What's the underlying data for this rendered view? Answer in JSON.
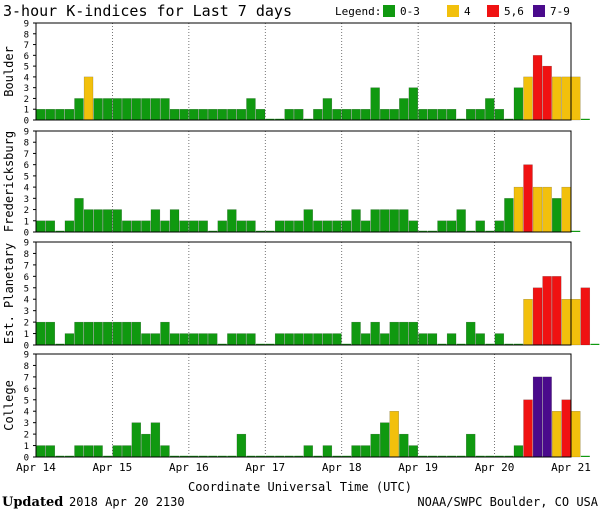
{
  "chart_data": {
    "type": "bar",
    "title": "3-hour K-indices for Last 7 days",
    "legend": {
      "label": "Legend:",
      "placement": "top-right",
      "entries": [
        {
          "label": "0-3",
          "color": "#109910"
        },
        {
          "label": "4",
          "color": "#f2c00c"
        },
        {
          "label": "5,6",
          "color": "#f01212"
        },
        {
          "label": "7-9",
          "color": "#4a0a8c"
        }
      ]
    },
    "xlabel": "Coordinate Universal Time (UTC)",
    "x_tick_labels": [
      "Apr 14",
      "Apr 15",
      "Apr 16",
      "Apr 17",
      "Apr 18",
      "Apr 19",
      "Apr 20",
      "Apr 21"
    ],
    "ylim": [
      0,
      9
    ],
    "y_ticks": [
      0,
      1,
      2,
      3,
      4,
      5,
      6,
      7,
      8,
      9
    ],
    "bar_interval_hours": 3,
    "panels": [
      {
        "name": "Boulder",
        "values": [
          1,
          1,
          1,
          1,
          2,
          4,
          2,
          2,
          2,
          2,
          2,
          2,
          2,
          2,
          1,
          1,
          1,
          1,
          1,
          1,
          1,
          1,
          2,
          1,
          0,
          0,
          1,
          1,
          0,
          1,
          2,
          1,
          1,
          1,
          1,
          3,
          1,
          1,
          2,
          3,
          1,
          1,
          1,
          1,
          0,
          1,
          1,
          2,
          1,
          0,
          3,
          4,
          6,
          5,
          4,
          4,
          4,
          0
        ]
      },
      {
        "name": "Fredericksburg",
        "values": [
          1,
          1,
          0,
          1,
          3,
          2,
          2,
          2,
          2,
          1,
          1,
          1,
          2,
          1,
          2,
          1,
          1,
          1,
          0,
          1,
          2,
          1,
          1,
          0,
          0,
          1,
          1,
          1,
          2,
          1,
          1,
          1,
          1,
          2,
          1,
          2,
          2,
          2,
          2,
          1,
          0,
          0,
          1,
          1,
          2,
          0,
          1,
          0,
          1,
          3,
          4,
          6,
          4,
          4,
          3,
          4,
          0
        ]
      },
      {
        "name": "Est. Planetary",
        "values": [
          2,
          2,
          0,
          1,
          2,
          2,
          2,
          2,
          2,
          2,
          2,
          1,
          1,
          2,
          1,
          1,
          1,
          1,
          1,
          0,
          1,
          1,
          1,
          0,
          0,
          1,
          1,
          1,
          1,
          1,
          1,
          1,
          0,
          2,
          1,
          2,
          1,
          2,
          2,
          2,
          1,
          1,
          0,
          1,
          0,
          2,
          1,
          0,
          1,
          0,
          0,
          4,
          5,
          6,
          6,
          4,
          4,
          5,
          0
        ]
      },
      {
        "name": "College",
        "values": [
          1,
          1,
          0,
          0,
          1,
          1,
          1,
          0,
          1,
          1,
          3,
          2,
          3,
          1,
          0,
          0,
          0,
          0,
          0,
          0,
          0,
          2,
          0,
          0,
          0,
          0,
          0,
          0,
          1,
          0,
          1,
          0,
          0,
          1,
          1,
          2,
          3,
          4,
          2,
          1,
          0,
          0,
          0,
          0,
          0,
          2,
          0,
          0,
          0,
          0,
          1,
          5,
          7,
          7,
          4,
          5,
          4,
          0
        ]
      }
    ]
  },
  "footer": {
    "updated_label": "Updated",
    "updated_value": "2018 Apr 20 2130",
    "source": "NOAA/SWPC Boulder, CO USA"
  }
}
